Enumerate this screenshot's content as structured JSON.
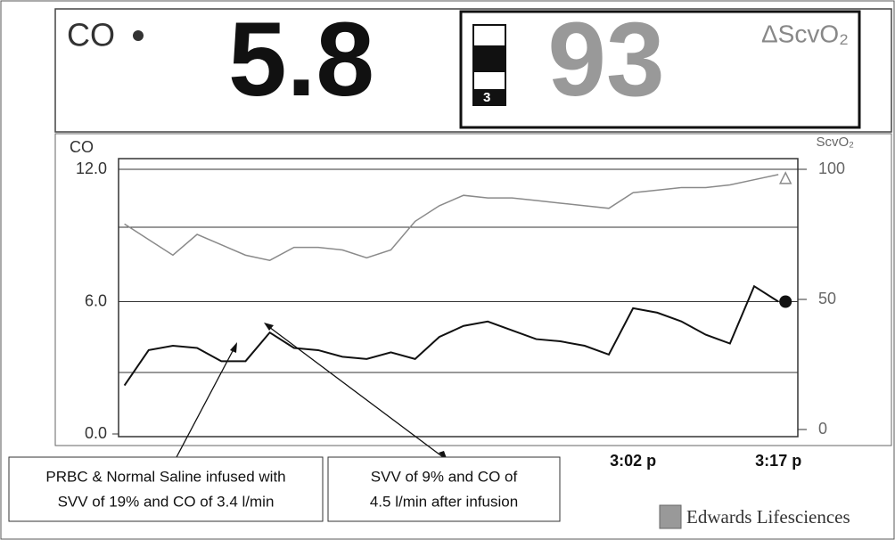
{
  "display": {
    "co_label": "CO",
    "co_value": "5.8",
    "scvo2_value": "93",
    "scvo2_label": "ΔScvO₂",
    "scvo2_level": "3"
  },
  "chart_data": {
    "type": "line",
    "categories": [
      null,
      null,
      null,
      null,
      null,
      null,
      null,
      null,
      null,
      null,
      null,
      null,
      null,
      null,
      null,
      null,
      null,
      null,
      null,
      null,
      null,
      "3:02 p",
      null,
      null,
      null,
      null,
      null,
      "3:17 p"
    ],
    "series": [
      {
        "name": "CO",
        "color": "#111111",
        "values": [
          2.2,
          3.8,
          4.0,
          3.9,
          3.3,
          3.3,
          4.6,
          3.9,
          3.8,
          3.5,
          3.4,
          3.7,
          3.4,
          4.4,
          4.9,
          5.1,
          4.7,
          4.3,
          4.2,
          4.0,
          3.6,
          5.7,
          5.5,
          5.1,
          4.5,
          4.1,
          6.7,
          6.0
        ]
      },
      {
        "name": "ScvO₂",
        "color": "#8a8a8a",
        "axis": "y2",
        "values": [
          79,
          73,
          67,
          75,
          71,
          67,
          65,
          70,
          70,
          69,
          66,
          69,
          80,
          86,
          90,
          89,
          89,
          88,
          87,
          86,
          85,
          91,
          92,
          93,
          93,
          94,
          96,
          98
        ]
      }
    ],
    "ylim": [
      0,
      12
    ],
    "yticks": [
      {
        "value": 0,
        "label": "0.0"
      },
      {
        "value": 6,
        "label": "6.0"
      },
      {
        "value": 12,
        "label": "12.0"
      }
    ],
    "y2lim": [
      0,
      100
    ],
    "y2ticks": [
      0,
      50,
      100
    ]
  },
  "annotations": [
    {
      "lines": [
        "PRBC & Normal Saline infused with",
        "SVV of 19% and CO of 3.4 l/min"
      ]
    },
    {
      "lines": [
        "SVV of 9% and CO of",
        "4.5 l/min after infusion"
      ]
    }
  ],
  "footer": {
    "brand": "Edwards Lifesciences"
  }
}
